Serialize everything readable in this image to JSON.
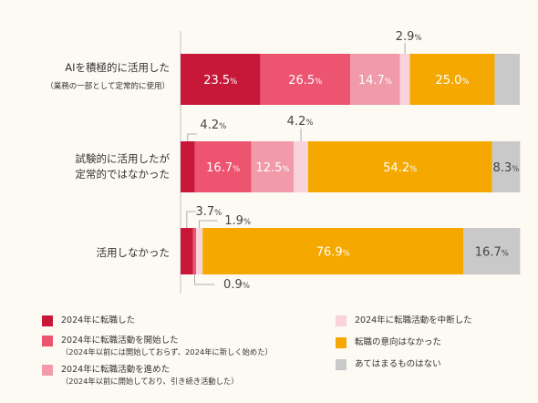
{
  "chart_data": {
    "type": "bar",
    "stacked": true,
    "orientation": "horizontal",
    "percent_suffix": "%",
    "categories": [
      {
        "label_lines": [
          "AIを積極的に活用した"
        ],
        "sub_label": "（業務の一部として定常的に使用）"
      },
      {
        "label_lines": [
          "試験的に活用したが",
          "定常的ではなかった"
        ],
        "sub_label": ""
      },
      {
        "label_lines": [
          "活用しなかった"
        ],
        "sub_label": ""
      }
    ],
    "series": [
      {
        "name": "2024年に転職した",
        "color": "#c8183a",
        "values": [
          23.5,
          4.2,
          3.7
        ]
      },
      {
        "name": "2024年に転職活動を開始した",
        "name_sub": "（2024年以前には開始しておらず、2024年に新しく始めた）",
        "color": "#ec5470",
        "values": [
          26.5,
          16.7,
          0.9
        ]
      },
      {
        "name": "2024年に転職活動を進めた",
        "name_sub": "（2024年以前に開始しており、引き続き活動した）",
        "color": "#f09aaa",
        "values": [
          14.7,
          12.5,
          0.0
        ]
      },
      {
        "name": "2024年に転職活動を中断した",
        "color": "#f8d3db",
        "values": [
          2.9,
          4.2,
          1.9
        ]
      },
      {
        "name": "転職の意向はなかった",
        "color": "#f5a900",
        "values": [
          25.0,
          54.2,
          76.9
        ]
      },
      {
        "name": "あてはまるものはない",
        "color": "#c9c9c9",
        "values": [
          7.4,
          8.3,
          16.7
        ]
      }
    ],
    "xlim": [
      0,
      100
    ]
  }
}
